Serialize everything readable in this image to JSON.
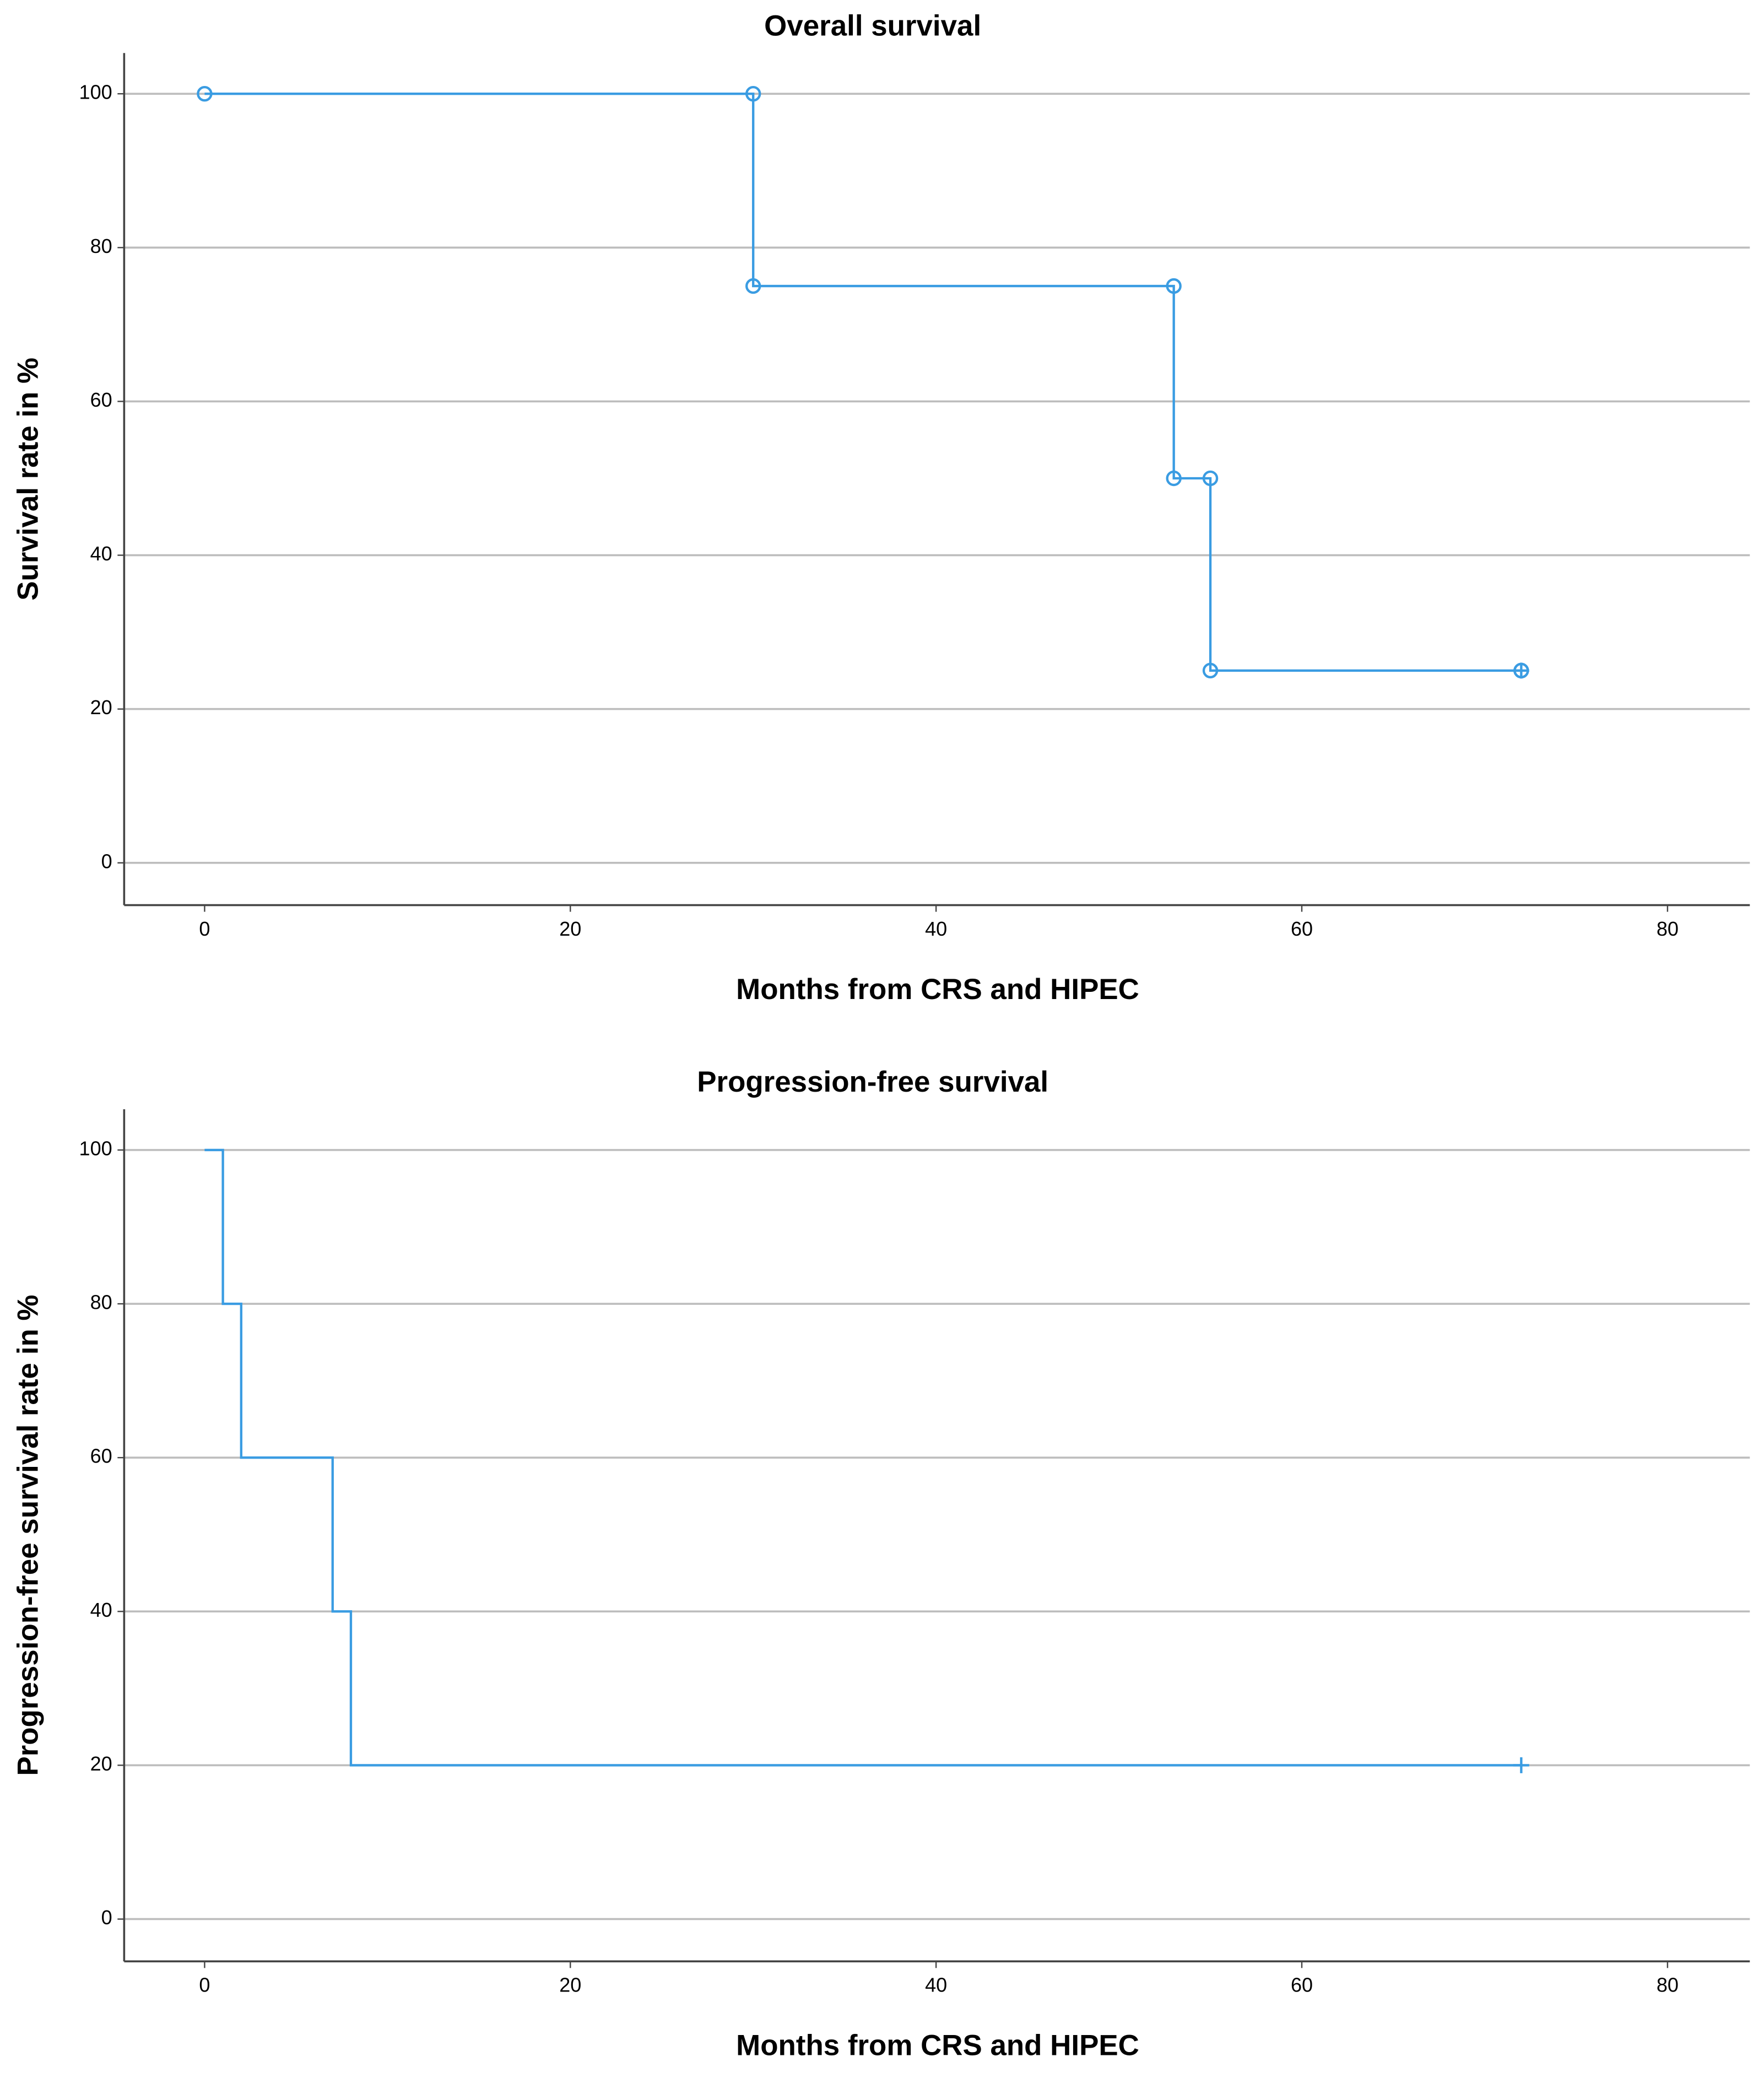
{
  "chart_data": [
    {
      "type": "step",
      "title": "Overall survival",
      "x_label": "Months from CRS and HIPEC",
      "y_label": "Survival rate in %",
      "x": [
        0,
        30,
        53,
        55,
        72
      ],
      "values": [
        100,
        75,
        50,
        25,
        25
      ],
      "color": "#3a9ce2",
      "markers": "circle",
      "censor_last": true,
      "xlim": [
        -4.4,
        84.5
      ],
      "xticks": [
        0,
        20,
        40,
        60,
        80
      ],
      "ylim": [
        -5.5,
        105.3
      ],
      "yticks": [
        0,
        20,
        40,
        60,
        80,
        100
      ],
      "grid": true
    },
    {
      "type": "step",
      "title": "Progression-free survival",
      "x_label": "Months from CRS and HIPEC",
      "y_label": "Progression-free survival rate in %",
      "x": [
        0,
        1,
        2,
        7,
        8,
        72
      ],
      "values": [
        100,
        80,
        60,
        40,
        20,
        20
      ],
      "color": "#3a9ce2",
      "markers": "none",
      "censor_last": true,
      "xlim": [
        -4.4,
        84.5
      ],
      "xticks": [
        0,
        20,
        40,
        60,
        80
      ],
      "ylim": [
        -5.5,
        105.3
      ],
      "yticks": [
        0,
        20,
        40,
        60,
        80,
        100
      ],
      "grid": true
    }
  ]
}
